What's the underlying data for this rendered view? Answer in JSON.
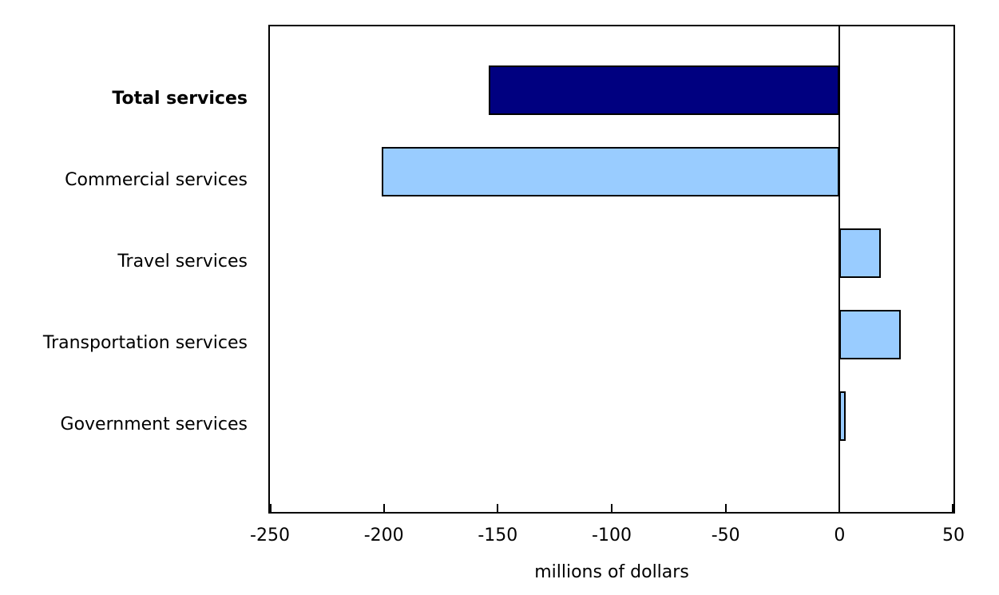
{
  "figure": {
    "background": "#ffffff",
    "axis_color": "#000000"
  },
  "chart_data": {
    "type": "bar",
    "orientation": "horizontal",
    "title": "",
    "xlabel": "millions of dollars",
    "ylabel": "",
    "categories": [
      "Total services",
      "Commercial services",
      "Travel services",
      "Transportation services",
      "Government services"
    ],
    "values": [
      -154,
      -201,
      18,
      27,
      2
    ],
    "bar_colors": [
      "#000080",
      "#99ccff",
      "#99ccff",
      "#99ccff",
      "#99ccff"
    ],
    "bold_categories": [
      true,
      false,
      false,
      false,
      false
    ],
    "xlim": [
      -250,
      50
    ],
    "xticks": [
      -250,
      -200,
      -150,
      -100,
      -50,
      0,
      50
    ],
    "xtick_labels": [
      "-250",
      "-200",
      "-150",
      "-100",
      "-50",
      "0",
      "50"
    ],
    "grid": false,
    "legend": "none",
    "zero_line": true,
    "bar_border_color": "#000000",
    "navy_accent": "#000080",
    "lightblue_accent": "#99ccff"
  }
}
